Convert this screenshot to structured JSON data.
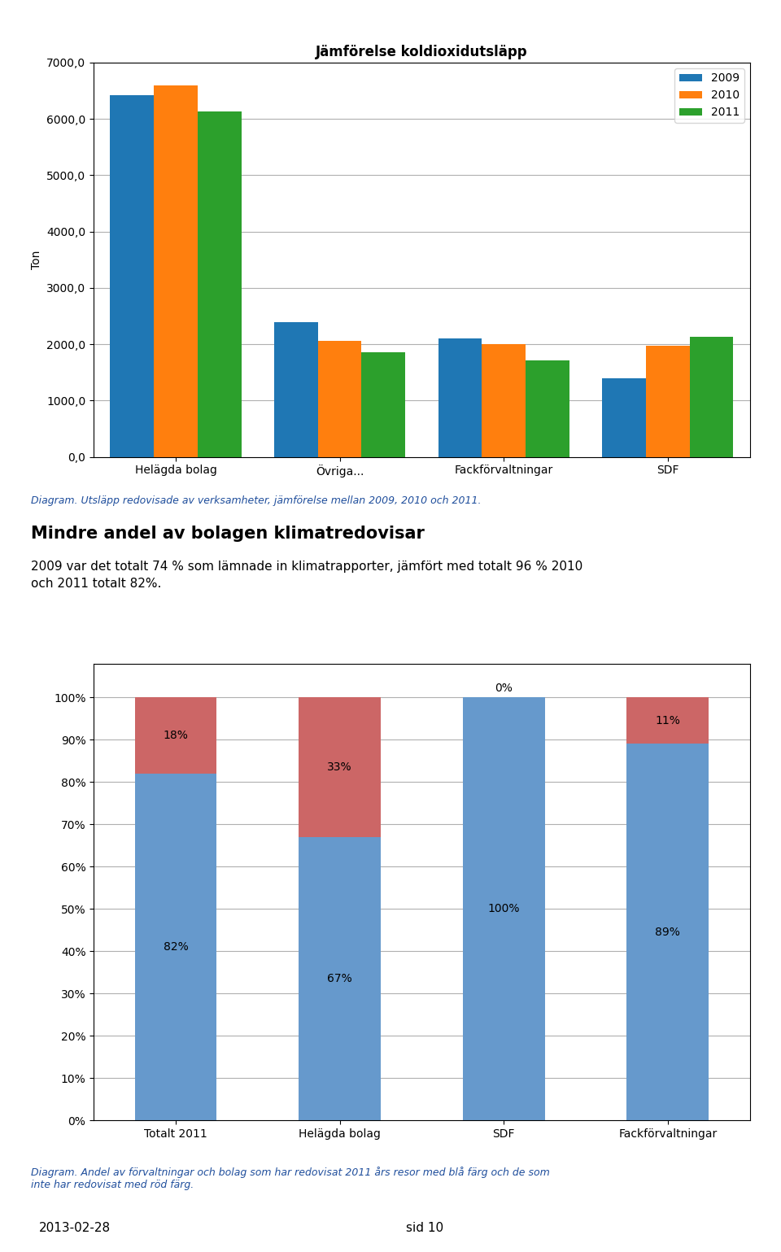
{
  "chart_data": [
    {
      "type": "bar",
      "title": "Jämförelse koldioxidutsläpp",
      "y_label": "Ton",
      "categories": [
        "Helägda bolag",
        "Övriga...",
        "Fackförvaltningar",
        "SDF"
      ],
      "series": [
        {
          "name": "2009",
          "values": [
            6420,
            2400,
            2100,
            1390
          ]
        },
        {
          "name": "2010",
          "values": [
            6600,
            2060,
            2010,
            1980
          ]
        },
        {
          "name": "2011",
          "values": [
            6130,
            1860,
            1720,
            2130
          ]
        }
      ],
      "ylim": [
        0,
        7000
      ],
      "yticks": [
        {
          "value": 0,
          "label": "0,0"
        },
        {
          "value": 1000,
          "label": "1000,0"
        },
        {
          "value": 2000,
          "label": "2000,0"
        },
        {
          "value": 3000,
          "label": "3000,0"
        },
        {
          "value": 4000,
          "label": "4000,0"
        },
        {
          "value": 5000,
          "label": "5000,0"
        },
        {
          "value": 6000,
          "label": "6000,0"
        },
        {
          "value": 7000,
          "label": "7000,0"
        }
      ],
      "grid": true,
      "legend": "upper right",
      "annotations": [
        "Diagram. Utsläpp redovisade av verksamheter, jämförelse mellan 2009, 2010 och 2011.",
        "Mindre andel av bolagen klimatredovisar",
        "2009 var det totalt 74 % som lämnade in klimatrapporter, jämfört med totalt 96 % 2010\noch 2011 totalt 82%."
      ]
    },
    {
      "type": "bar",
      "stacked": true,
      "data_labels": true,
      "categories": [
        "Totalt 2011",
        "Helägda bolag",
        "SDF",
        "Fackförvaltningar"
      ],
      "series": [
        {
          "color": "#6699CC",
          "values": [
            82,
            67,
            100,
            89
          ],
          "value_labels": [
            "82%",
            "67%",
            "100%",
            "89%"
          ]
        },
        {
          "color": "#CC6666",
          "values": [
            18,
            33,
            0,
            11
          ],
          "value_labels": [
            "18%",
            "33%",
            "0%",
            "11%"
          ]
        }
      ],
      "ylim": [
        0,
        108
      ],
      "yticks": [
        {
          "value": 0,
          "label": "0%"
        },
        {
          "value": 10,
          "label": "10%"
        },
        {
          "value": 20,
          "label": "20%"
        },
        {
          "value": 30,
          "label": "30%"
        },
        {
          "value": 40,
          "label": "40%"
        },
        {
          "value": 50,
          "label": "50%"
        },
        {
          "value": 60,
          "label": "60%"
        },
        {
          "value": 70,
          "label": "70%"
        },
        {
          "value": 80,
          "label": "80%"
        },
        {
          "value": 90,
          "label": "90%"
        },
        {
          "value": 100,
          "label": "100%"
        }
      ],
      "grid": true,
      "annotations": [
        "Diagram. Andel av förvaltningar och bolag som har redovisat 2011 års resor med blå färg och de som\ninte har redovisat med röd färg.",
        "2013-02-28",
        "sid 10"
      ]
    }
  ]
}
